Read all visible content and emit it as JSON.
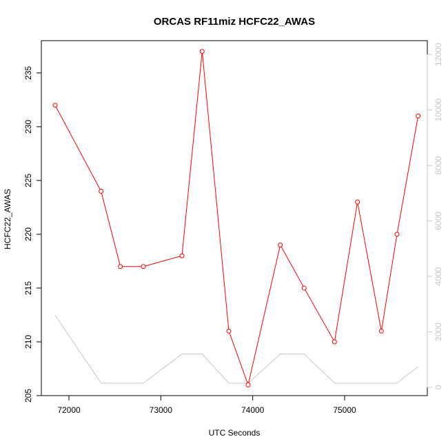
{
  "chart_data": {
    "type": "line",
    "title": "ORCAS RF11miz HCFC22_AWAS",
    "xlabel": "UTC Seconds",
    "ylabel": "HCFC22_AWAS",
    "xlim": [
      71700,
      75900
    ],
    "ylim": [
      205,
      238
    ],
    "y2lim": [
      -300,
      12500
    ],
    "x_ticks": [
      72000,
      73000,
      74000,
      75000
    ],
    "y_ticks": [
      205,
      210,
      215,
      220,
      225,
      230,
      235
    ],
    "y2_ticks": [
      0,
      2000,
      4000,
      6000,
      8000,
      10000,
      12000
    ],
    "grid": false,
    "legend": "none",
    "series": [
      {
        "axis": "left",
        "color": "#ff0000",
        "marker": "open-circle",
        "x": [
          71850,
          72350,
          72560,
          72810,
          73230,
          73450,
          73740,
          73950,
          74300,
          74560,
          74890,
          75140,
          75400,
          75570,
          75800
        ],
        "y": [
          232,
          224,
          217,
          217,
          218,
          237,
          211,
          206,
          219,
          215,
          210,
          223,
          211,
          220,
          231
        ]
      },
      {
        "axis": "right",
        "color": "#c8c8c8",
        "marker": "none",
        "x": [
          71850,
          72350,
          72560,
          72810,
          73230,
          73450,
          73740,
          73950,
          74300,
          74560,
          74890,
          75140,
          75400,
          75570,
          75800
        ],
        "y": [
          2600,
          150,
          150,
          150,
          1200,
          1200,
          150,
          150,
          1200,
          1200,
          150,
          150,
          150,
          150,
          750
        ]
      }
    ]
  }
}
